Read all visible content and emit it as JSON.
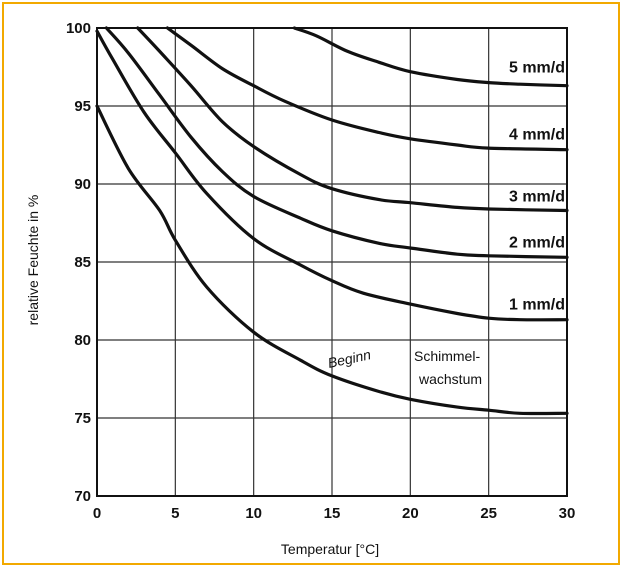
{
  "chart_data": {
    "type": "line",
    "xlabel": "Temperatur [°C]",
    "ylabel": "relative Feuchte in %",
    "xlim": [
      0,
      30
    ],
    "ylim": [
      70,
      100
    ],
    "x_ticks": [
      0,
      5,
      10,
      15,
      20,
      25,
      30
    ],
    "y_ticks": [
      70,
      75,
      80,
      85,
      90,
      95,
      100
    ],
    "grid": true,
    "series": [
      {
        "name": "Beginn Schimmelwachstum",
        "points": [
          [
            0,
            95
          ],
          [
            2,
            91
          ],
          [
            4,
            88.3
          ],
          [
            5,
            86.4
          ],
          [
            7,
            83.4
          ],
          [
            10,
            80.5
          ],
          [
            13,
            78.7
          ],
          [
            15,
            77.7
          ],
          [
            18,
            76.7
          ],
          [
            20,
            76.2
          ],
          [
            23,
            75.7
          ],
          [
            25,
            75.5
          ],
          [
            27,
            75.3
          ],
          [
            30,
            75.3
          ]
        ]
      },
      {
        "name": "1 mm/d",
        "points": [
          [
            0,
            99.8
          ],
          [
            1,
            98
          ],
          [
            3,
            94.6
          ],
          [
            5,
            92
          ],
          [
            7,
            89.4
          ],
          [
            10,
            86.5
          ],
          [
            13,
            84.8
          ],
          [
            15,
            83.8
          ],
          [
            17,
            83
          ],
          [
            20,
            82.3
          ],
          [
            23,
            81.7
          ],
          [
            25,
            81.4
          ],
          [
            27,
            81.3
          ],
          [
            30,
            81.3
          ]
        ]
      },
      {
        "name": "2 mm/d",
        "points": [
          [
            0.6,
            100
          ],
          [
            2,
            98.4
          ],
          [
            4,
            95.7
          ],
          [
            6,
            93
          ],
          [
            8,
            90.8
          ],
          [
            10,
            89.2
          ],
          [
            13,
            87.8
          ],
          [
            15,
            87
          ],
          [
            18,
            86.2
          ],
          [
            20,
            85.9
          ],
          [
            23,
            85.5
          ],
          [
            25,
            85.4
          ],
          [
            30,
            85.3
          ]
        ]
      },
      {
        "name": "3 mm/d",
        "points": [
          [
            2.6,
            100
          ],
          [
            4,
            98.5
          ],
          [
            6,
            96.3
          ],
          [
            8,
            94
          ],
          [
            10,
            92.4
          ],
          [
            13,
            90.6
          ],
          [
            15,
            89.7
          ],
          [
            18,
            89
          ],
          [
            20,
            88.8
          ],
          [
            23,
            88.5
          ],
          [
            25,
            88.4
          ],
          [
            30,
            88.3
          ]
        ]
      },
      {
        "name": "4 mm/d",
        "points": [
          [
            4.5,
            100
          ],
          [
            6,
            98.9
          ],
          [
            8,
            97.4
          ],
          [
            10,
            96.3
          ],
          [
            12,
            95.3
          ],
          [
            15,
            94.1
          ],
          [
            18,
            93.3
          ],
          [
            20,
            92.9
          ],
          [
            23,
            92.5
          ],
          [
            25,
            92.3
          ],
          [
            30,
            92.2
          ]
        ]
      },
      {
        "name": "5 mm/d",
        "points": [
          [
            12.6,
            100
          ],
          [
            14,
            99.5
          ],
          [
            16,
            98.5
          ],
          [
            18,
            97.8
          ],
          [
            20,
            97.2
          ],
          [
            23,
            96.7
          ],
          [
            25,
            96.5
          ],
          [
            27,
            96.4
          ],
          [
            30,
            96.3
          ]
        ]
      }
    ],
    "annotations": {
      "beginn": "Beginn",
      "schimmel": "Schimmel-",
      "wachstum": "wachstum"
    }
  }
}
